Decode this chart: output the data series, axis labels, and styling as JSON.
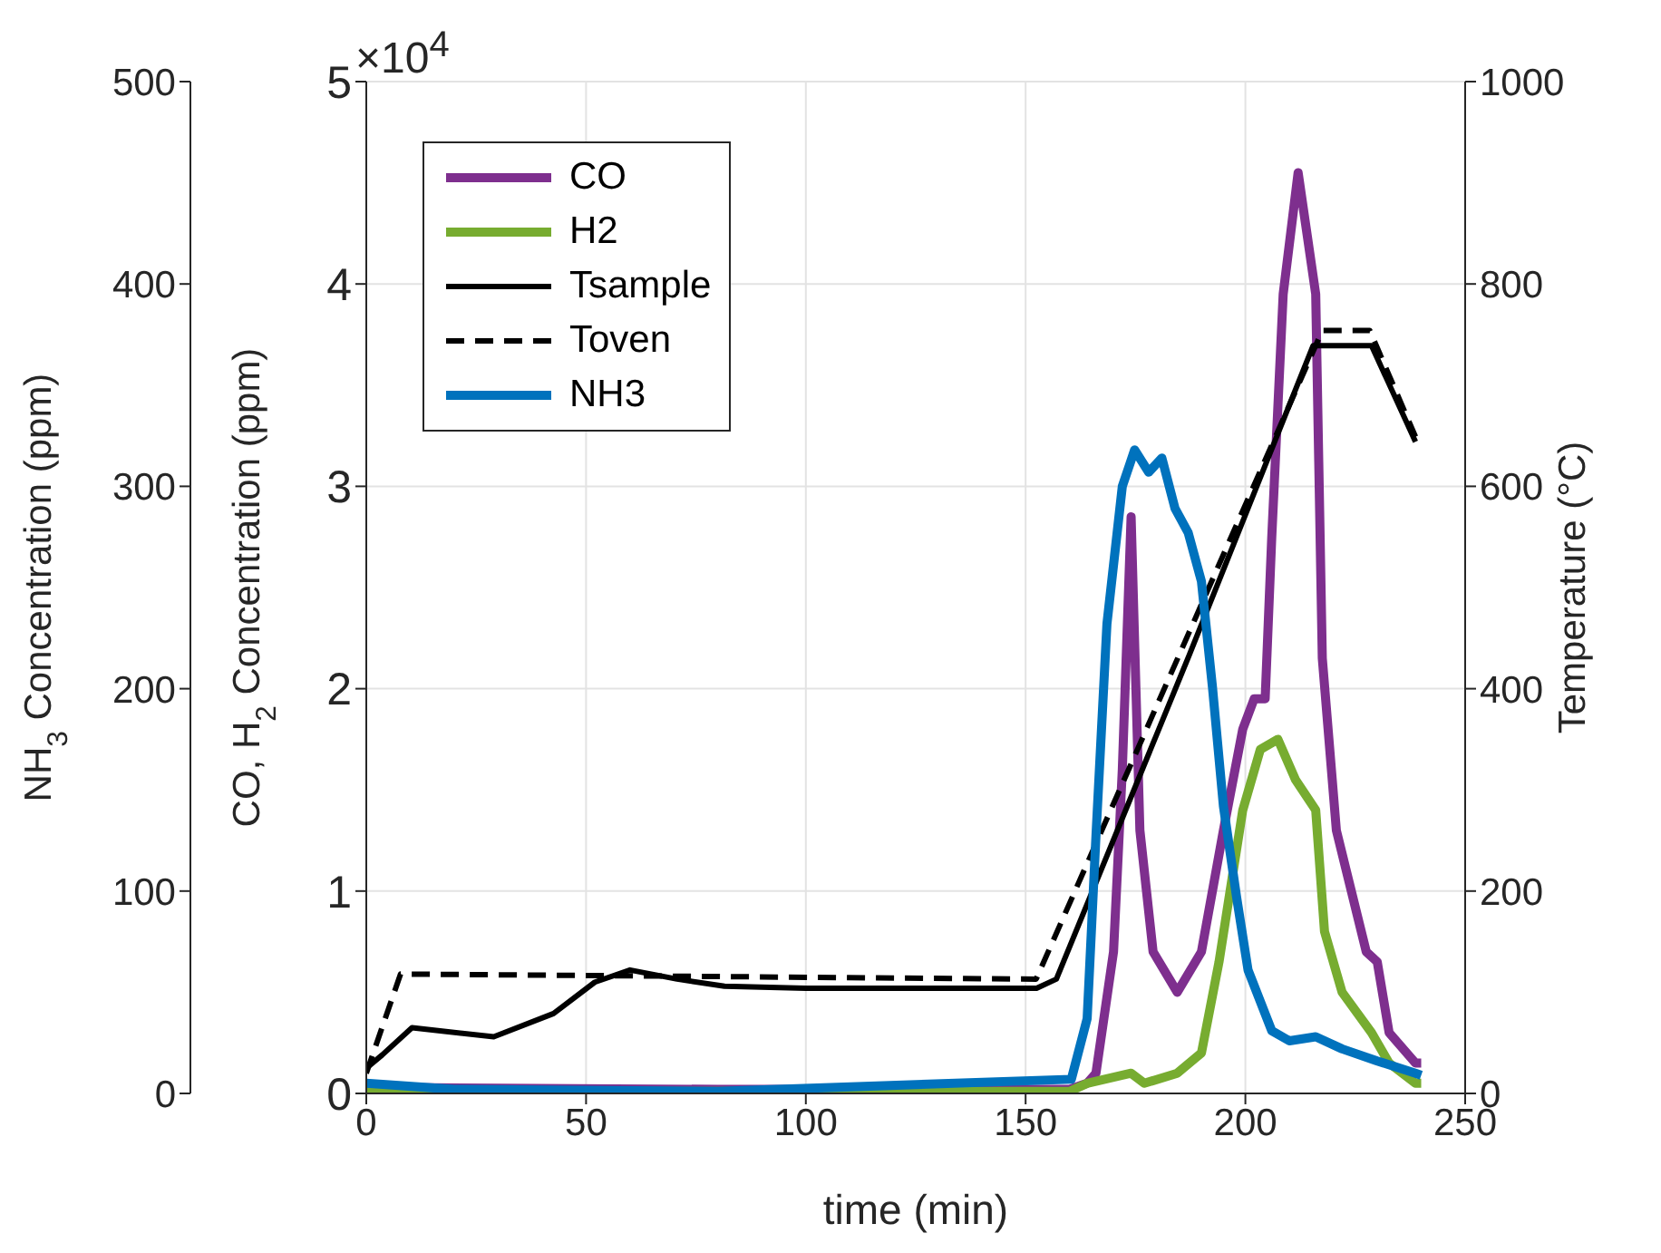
{
  "chart_data": {
    "type": "line",
    "xlabel": "time (min)",
    "ylabel": "CO, H$_{2}$ Concentration (ppm)",
    "y2label": "Temperature (°C)",
    "y3label": "NH$_{3}$ Concentration (ppm)",
    "annotations": [
      "×10$^{4}$"
    ],
    "xlim": [
      0,
      250
    ],
    "xticks": [
      0,
      50,
      100,
      150,
      200,
      250
    ],
    "ylim": [
      0,
      5
    ],
    "yticks": [
      0,
      1,
      2,
      3,
      4,
      5
    ],
    "y2lim": [
      0,
      1000
    ],
    "y2ticks": [
      0,
      200,
      400,
      600,
      800,
      1000
    ],
    "y3lim": [
      0,
      500
    ],
    "y3ticks": [
      0,
      100,
      200,
      300,
      400,
      500
    ],
    "grid": true,
    "legend": "top left",
    "series": [
      {
        "name": "CO",
        "color": "#7e2f8e",
        "axis": "y",
        "line_style": "solid",
        "x": [
          0,
          80,
          160,
          164,
          166,
          170,
          172,
          174,
          176,
          179,
          184.5,
          190,
          195,
          199.4,
          202,
          204.5,
          206,
          208.6,
          212,
          216,
          217.5,
          220.7,
          227.5,
          230,
          232.7,
          238.7,
          240
        ],
        "values": [
          0.03,
          0.02,
          0.02,
          0.05,
          0.1,
          0.7,
          1.6,
          2.85,
          1.3,
          0.7,
          0.5,
          0.7,
          1.3,
          1.8,
          1.95,
          1.95,
          2.75,
          3.95,
          4.55,
          3.95,
          2.15,
          1.3,
          0.7,
          0.65,
          0.3,
          0.15,
          0.15
        ]
      },
      {
        "name": "H2",
        "color": "#77ac30",
        "axis": "y",
        "line_style": "solid",
        "x": [
          0,
          80,
          160,
          164,
          174,
          177,
          184.5,
          190,
          194,
          199.4,
          203.4,
          207.4,
          211.4,
          216,
          218,
          222,
          228.7,
          232.7,
          238.7,
          240
        ],
        "values": [
          0.01,
          0.01,
          0.01,
          0.05,
          0.1,
          0.05,
          0.1,
          0.2,
          0.65,
          1.4,
          1.7,
          1.75,
          1.55,
          1.4,
          0.8,
          0.5,
          0.3,
          0.15,
          0.05,
          0.05
        ]
      },
      {
        "name": "Tsample",
        "color": "#000000",
        "axis": "y2",
        "line_style": "solid",
        "x": [
          0,
          3.6,
          10.4,
          29,
          42.6,
          52,
          60,
          70.7,
          81.5,
          100,
          152.5,
          157,
          187.3,
          215.4,
          228.7,
          238.7
        ],
        "values": [
          25,
          38,
          65,
          56,
          79,
          110,
          122,
          113,
          106,
          104,
          104,
          113,
          434,
          739,
          739,
          644
        ]
      },
      {
        "name": "Toven",
        "color": "#000000",
        "axis": "y2",
        "line_style": "dashed",
        "x": [
          0,
          7.8,
          152.4,
          217.5,
          228.3,
          238.7
        ],
        "values": [
          20,
          118,
          113,
          754,
          754,
          649
        ]
      },
      {
        "name": "NH3",
        "color": "#0072bd",
        "axis": "y3",
        "line_style": "solid",
        "x": [
          0,
          20,
          80,
          160.4,
          164,
          166,
          168.5,
          172,
          174.8,
          178,
          181,
          184,
          187,
          190,
          192.5,
          195,
          198,
          200.6,
          206,
          210,
          216,
          222,
          230,
          238.7,
          240
        ],
        "values": [
          5,
          2,
          1,
          7,
          37,
          127,
          232,
          300,
          318,
          307,
          314,
          289,
          277,
          253,
          201,
          142,
          97,
          61,
          31,
          26,
          28,
          22,
          16,
          10,
          9
        ]
      }
    ]
  }
}
